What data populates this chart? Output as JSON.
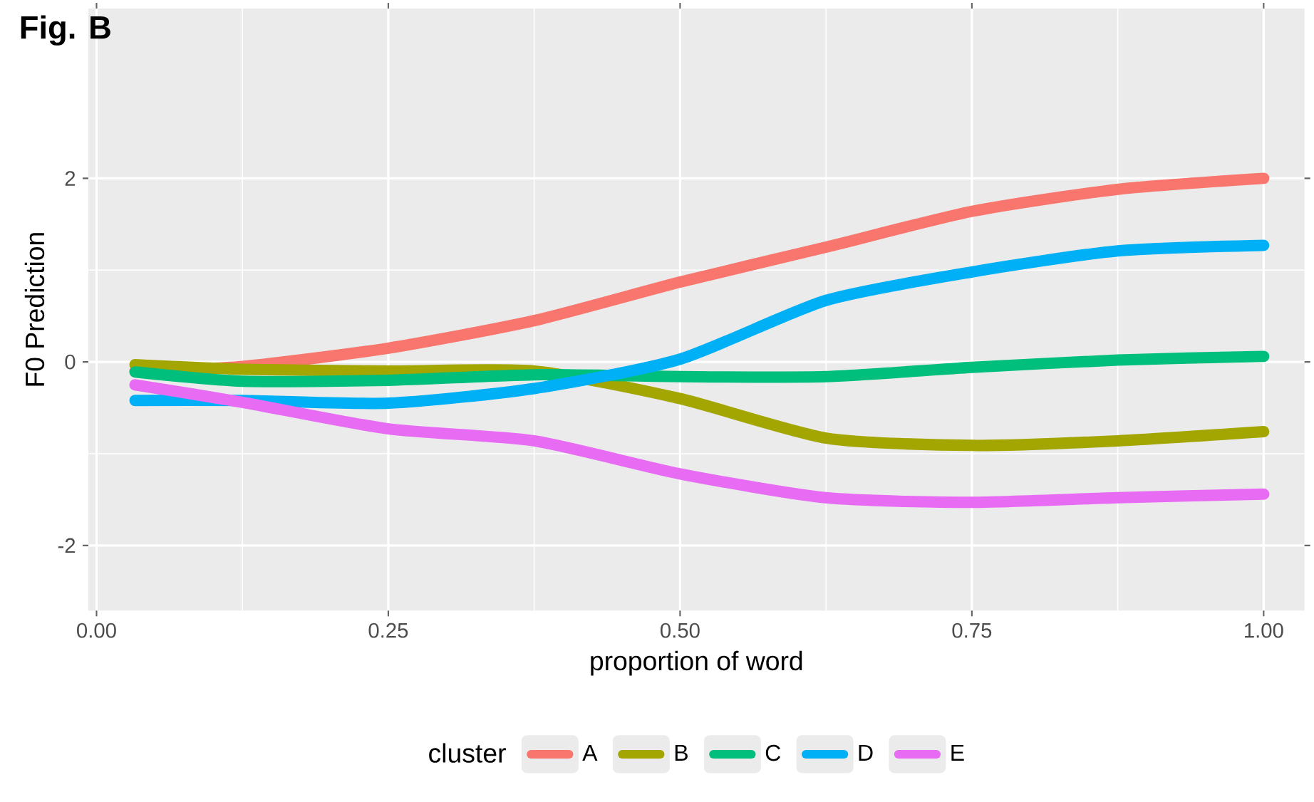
{
  "chart_data": {
    "type": "line",
    "title": "Fig. B",
    "xlabel": "proportion of word",
    "ylabel": "F0 Prediction",
    "legend_title": "cluster",
    "x": [
      0.033,
      0.125,
      0.25,
      0.375,
      0.5,
      0.625,
      0.75,
      0.875,
      1.0
    ],
    "series": [
      {
        "name": "A",
        "color": "#f8766d",
        "values": [
          -0.1,
          -0.05,
          0.15,
          0.45,
          0.87,
          1.25,
          1.64,
          1.88,
          2.0
        ]
      },
      {
        "name": "B",
        "color": "#a3a500",
        "values": [
          -0.03,
          -0.08,
          -0.1,
          -0.1,
          -0.4,
          -0.83,
          -0.91,
          -0.86,
          -0.76
        ]
      },
      {
        "name": "C",
        "color": "#00bf7d",
        "values": [
          -0.11,
          -0.21,
          -0.2,
          -0.14,
          -0.16,
          -0.16,
          -0.06,
          0.02,
          0.06
        ]
      },
      {
        "name": "D",
        "color": "#00b0f6",
        "values": [
          -0.42,
          -0.42,
          -0.45,
          -0.29,
          0.03,
          0.67,
          0.98,
          1.21,
          1.27
        ]
      },
      {
        "name": "E",
        "color": "#e76bf3",
        "values": [
          -0.25,
          -0.44,
          -0.73,
          -0.86,
          -1.22,
          -1.48,
          -1.53,
          -1.48,
          -1.44
        ]
      }
    ],
    "xlim": [
      -0.007,
      1.035
    ],
    "ylim": [
      -2.71,
      3.85
    ],
    "xticks": [
      {
        "value": 0,
        "label": "0.00"
      },
      {
        "value": 0.25,
        "label": "0.25"
      },
      {
        "value": 0.5,
        "label": "0.50"
      },
      {
        "value": 0.75,
        "label": "0.75"
      },
      {
        "value": 1,
        "label": "1.00"
      }
    ],
    "yticks": [
      -2,
      0,
      2
    ],
    "grid": true,
    "legend": "bottom",
    "marker": "none",
    "line_style": "solid"
  }
}
